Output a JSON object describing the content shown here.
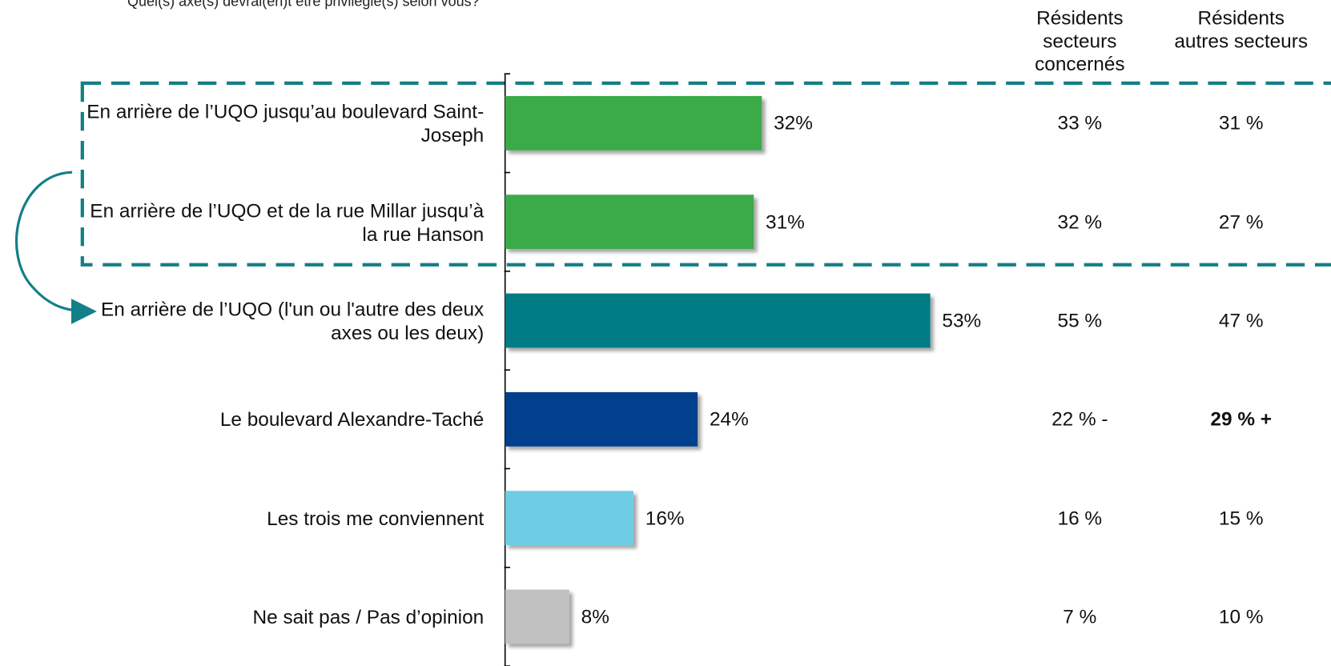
{
  "chart_data": {
    "type": "bar",
    "orientation": "horizontal",
    "title": "Quel(s) axe(s) devrai(en)t être privilégié(s) selon vous?",
    "categories": [
      "En arrière de l’UQO jusqu’au boulevard Saint-Joseph",
      "En arrière de l’UQO et de la rue Millar jusqu’à la rue Hanson",
      "En arrière de l’UQO (l'un ou l'autre des deux axes ou les deux)",
      "Le boulevard Alexandre-Taché",
      "Les trois me conviennent",
      "Ne sait pas / Pas d’opinion"
    ],
    "values": [
      32,
      31,
      53,
      24,
      16,
      8
    ],
    "value_labels": [
      "32%",
      "31%",
      "53%",
      "24%",
      "16%",
      "8%"
    ],
    "colors": [
      "#3aaa4a",
      "#3aaa4a",
      "#007b84",
      "#003f8c",
      "#6ecde4",
      "#c0c0c0"
    ],
    "xlim": [
      0,
      100
    ],
    "columns": [
      {
        "name": "Résidents secteurs concernés",
        "values": [
          "33 %",
          "32 %",
          "55 %",
          "22 % -",
          "16 %",
          "7 %"
        ],
        "bold": [
          false,
          false,
          false,
          false,
          false,
          false
        ]
      },
      {
        "name": "Résidents autres secteurs",
        "values": [
          "31 %",
          "27 %",
          "47 %",
          "29 % +",
          "15 %",
          "10 %"
        ],
        "bold": [
          false,
          false,
          false,
          true,
          false,
          false
        ]
      }
    ]
  }
}
